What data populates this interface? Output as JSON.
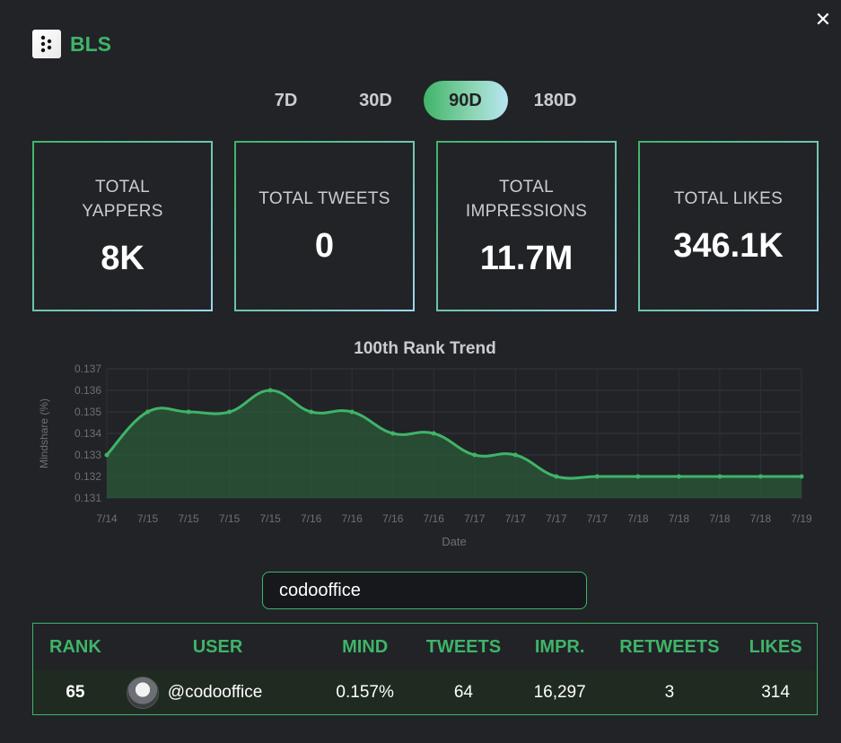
{
  "app": {
    "title": "BLS",
    "close_label": "✕"
  },
  "periods": [
    {
      "label": "7D",
      "active": false
    },
    {
      "label": "30D",
      "active": false
    },
    {
      "label": "90D",
      "active": true
    },
    {
      "label": "180D",
      "active": false
    }
  ],
  "stats": [
    {
      "label_line1": "TOTAL",
      "label_line2": "YAPPERS",
      "value": "8K"
    },
    {
      "label_line1": "TOTAL TWEETS",
      "label_line2": "",
      "value": "0"
    },
    {
      "label_line1": "TOTAL",
      "label_line2": "IMPRESSIONS",
      "value": "11.7M"
    },
    {
      "label_line1": "TOTAL LIKES",
      "label_line2": "",
      "value": "346.1K"
    }
  ],
  "chart_data": {
    "type": "area",
    "title": "100th Rank Trend",
    "xlabel": "Date",
    "ylabel": "Mindshare (%)",
    "ylim": [
      0.131,
      0.137
    ],
    "y_ticks": [
      "0.137",
      "0.136",
      "0.135",
      "0.134",
      "0.133",
      "0.132",
      "0.131"
    ],
    "categories": [
      "7/14",
      "7/15",
      "7/15",
      "7/15",
      "7/15",
      "7/16",
      "7/16",
      "7/16",
      "7/16",
      "7/17",
      "7/17",
      "7/17",
      "7/17",
      "7/18",
      "7/18",
      "7/18",
      "7/18",
      "7/19"
    ],
    "series": [
      {
        "values": [
          0.133,
          0.135,
          0.135,
          0.135,
          0.136,
          0.135,
          0.135,
          0.134,
          0.134,
          0.133,
          0.133,
          0.132,
          0.132,
          0.132,
          0.132,
          0.132,
          0.132,
          0.132
        ]
      }
    ],
    "grid": true,
    "line_color": "#3fb468",
    "fill_color": "#2b5a38"
  },
  "search": {
    "value": "codooffice"
  },
  "table": {
    "headers": {
      "rank": "RANK",
      "user": "USER",
      "mind": "MIND",
      "tweets": "TWEETS",
      "impr": "IMPR.",
      "retweets": "RETWEETS",
      "likes": "LIKES"
    },
    "rows": [
      {
        "rank": "65",
        "user": "@codooffice",
        "mind": "0.157%",
        "tweets": "64",
        "impr": "16,297",
        "retweets": "3",
        "likes": "314"
      }
    ]
  },
  "colors": {
    "accent": "#3fb468",
    "background": "#212327"
  }
}
